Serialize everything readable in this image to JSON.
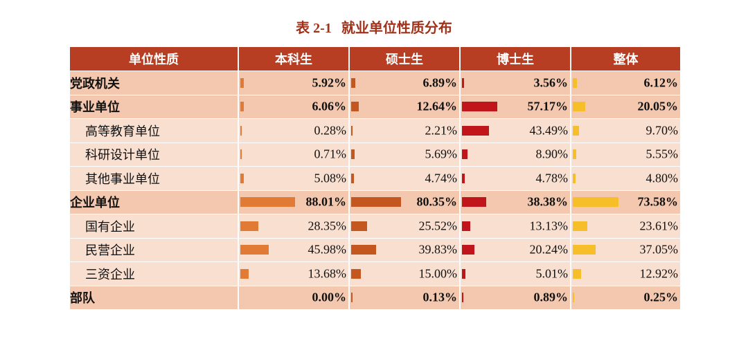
{
  "title": {
    "number": "表 2-1",
    "text": "就业单位性质分布"
  },
  "colors": {
    "header_bg": "#b73d23",
    "bachelor": "#e07a35",
    "master": "#c4561f",
    "phd": "#c0161b",
    "overall": "#f6bf2a"
  },
  "headers": [
    "单位性质",
    "本科生",
    "硕士生",
    "博士生",
    "整体"
  ],
  "scale_max": 100,
  "rows": [
    {
      "name": "党政机关",
      "level": "main",
      "values": [
        5.92,
        6.89,
        3.56,
        6.12
      ],
      "labels": [
        "5.92%",
        "6.89%",
        "3.56%",
        "6.12%"
      ]
    },
    {
      "name": "事业单位",
      "level": "main",
      "values": [
        6.06,
        12.64,
        57.17,
        20.05
      ],
      "labels": [
        "6.06%",
        "12.64%",
        "57.17%",
        "20.05%"
      ]
    },
    {
      "name": "高等教育单位",
      "level": "sub",
      "values": [
        0.28,
        2.21,
        43.49,
        9.7
      ],
      "labels": [
        "0.28%",
        "2.21%",
        "43.49%",
        "9.70%"
      ]
    },
    {
      "name": "科研设计单位",
      "level": "sub",
      "values": [
        0.71,
        5.69,
        8.9,
        5.55
      ],
      "labels": [
        "0.71%",
        "5.69%",
        "8.90%",
        "5.55%"
      ]
    },
    {
      "name": "其他事业单位",
      "level": "sub",
      "values": [
        5.08,
        4.74,
        4.78,
        4.8
      ],
      "labels": [
        "5.08%",
        "4.74%",
        "4.78%",
        "4.80%"
      ]
    },
    {
      "name": "企业单位",
      "level": "main",
      "values": [
        88.01,
        80.35,
        38.38,
        73.58
      ],
      "labels": [
        "88.01%",
        "80.35%",
        "38.38%",
        "73.58%"
      ]
    },
    {
      "name": "国有企业",
      "level": "sub",
      "values": [
        28.35,
        25.52,
        13.13,
        23.61
      ],
      "labels": [
        "28.35%",
        "25.52%",
        "13.13%",
        "23.61%"
      ]
    },
    {
      "name": "民营企业",
      "level": "sub",
      "values": [
        45.98,
        39.83,
        20.24,
        37.05
      ],
      "labels": [
        "45.98%",
        "39.83%",
        "20.24%",
        "37.05%"
      ]
    },
    {
      "name": "三资企业",
      "level": "sub",
      "values": [
        13.68,
        15.0,
        5.01,
        12.92
      ],
      "labels": [
        "13.68%",
        "15.00%",
        "5.01%",
        "12.92%"
      ]
    },
    {
      "name": "部队",
      "level": "main",
      "values": [
        0.0,
        0.13,
        0.89,
        0.25
      ],
      "labels": [
        "0.00%",
        "0.13%",
        "0.89%",
        "0.25%"
      ]
    }
  ]
}
